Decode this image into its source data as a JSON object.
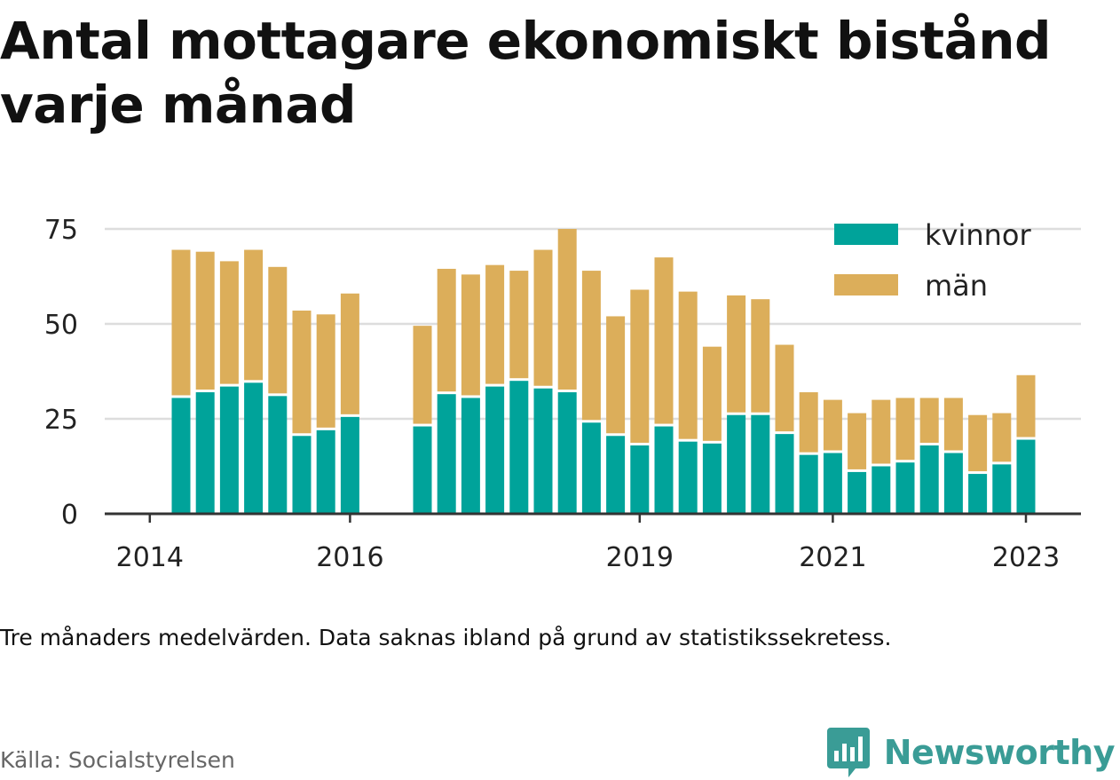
{
  "title": "Antal mottagare ekonomiskt bistånd varje månad",
  "note": "Tre månaders medelvärden. Data saknas ibland på grund av statistikssekretess.",
  "source": "Källa: Socialstyrelsen",
  "brand": {
    "name": "Newsworthy",
    "logo_icon": "bar-chart-badge-icon",
    "color": "#3a9c96"
  },
  "colors": {
    "kvinnor": "#00a39a",
    "man": "#dcae5a",
    "grid": "#dddddd",
    "axis": "#333333"
  },
  "chart_data": {
    "type": "bar",
    "stacked": true,
    "ylim": [
      0,
      75
    ],
    "yticks": [
      0,
      25,
      50,
      75
    ],
    "xticks": [
      {
        "label": "2014",
        "index": -1
      },
      {
        "label": "2016",
        "index": 7
      },
      {
        "label": "2019",
        "index": 19
      },
      {
        "label": "2021",
        "index": 27
      },
      {
        "label": "2023",
        "index": 35
      }
    ],
    "legend": {
      "position": "top-right"
    },
    "series": [
      {
        "name": "kvinnor",
        "values": [
          30.5,
          32,
          33.5,
          34.5,
          31,
          20.5,
          22,
          25.5,
          null,
          null,
          23,
          31.5,
          30.5,
          33.5,
          35,
          33,
          32,
          24,
          20.5,
          18,
          23,
          19,
          18.5,
          26,
          26,
          21,
          15.5,
          16,
          11,
          12.5,
          13.5,
          18,
          16,
          10.5,
          13,
          19.5
        ]
      },
      {
        "name": "män",
        "values": [
          39,
          37,
          33,
          35,
          34,
          33,
          30.5,
          32.5,
          null,
          null,
          26.5,
          33,
          32.5,
          32,
          29,
          36.5,
          43,
          40,
          31.5,
          41,
          44.5,
          39.5,
          25.5,
          31.5,
          30.5,
          23.5,
          16.5,
          14,
          15.5,
          17.5,
          17,
          12.5,
          14.5,
          15.5,
          13.5,
          17
        ]
      }
    ]
  }
}
